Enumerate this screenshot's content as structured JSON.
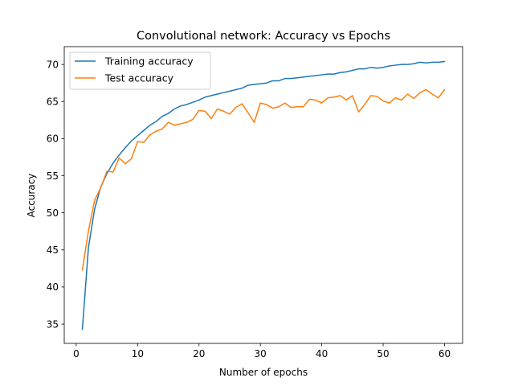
{
  "chart_data": {
    "type": "line",
    "title": "Convolutional network: Accuracy vs Epochs",
    "xlabel": "Number of epochs",
    "ylabel": "Accuracy",
    "xlim": [
      -1.95,
      62.95
    ],
    "ylim": [
      32.4,
      72.4
    ],
    "xticks": [
      0,
      10,
      20,
      30,
      40,
      50,
      60
    ],
    "yticks": [
      35,
      40,
      45,
      50,
      55,
      60,
      65,
      70
    ],
    "grid": false,
    "legend_position": "top-left",
    "x": [
      1,
      2,
      3,
      4,
      5,
      6,
      7,
      8,
      9,
      10,
      11,
      12,
      13,
      14,
      15,
      16,
      17,
      18,
      19,
      20,
      21,
      22,
      23,
      24,
      25,
      26,
      27,
      28,
      29,
      30,
      31,
      32,
      33,
      34,
      35,
      36,
      37,
      38,
      39,
      40,
      41,
      42,
      43,
      44,
      45,
      46,
      47,
      48,
      49,
      50,
      51,
      52,
      53,
      54,
      55,
      56,
      57,
      58,
      59,
      60
    ],
    "series": [
      {
        "name": "Training accuracy",
        "color": "#1f77b4",
        "values": [
          34.3,
          45.4,
          50.5,
          53.5,
          55.3,
          56.7,
          57.8,
          58.8,
          59.7,
          60.4,
          61.1,
          61.8,
          62.3,
          63.0,
          63.4,
          64.0,
          64.4,
          64.6,
          64.9,
          65.2,
          65.6,
          65.8,
          66.0,
          66.2,
          66.4,
          66.6,
          66.8,
          67.2,
          67.3,
          67.4,
          67.5,
          67.8,
          67.8,
          68.1,
          68.1,
          68.2,
          68.3,
          68.4,
          68.5,
          68.6,
          68.7,
          68.7,
          68.9,
          69.0,
          69.2,
          69.4,
          69.4,
          69.6,
          69.5,
          69.6,
          69.8,
          69.9,
          70.0,
          70.0,
          70.1,
          70.3,
          70.2,
          70.3,
          70.3,
          70.4
        ]
      },
      {
        "name": "Test accuracy",
        "color": "#ff7f0e",
        "values": [
          42.3,
          47.6,
          51.7,
          53.4,
          55.6,
          55.5,
          57.4,
          56.6,
          57.3,
          59.6,
          59.5,
          60.5,
          61.0,
          61.3,
          62.2,
          61.8,
          62.0,
          62.2,
          62.6,
          63.8,
          63.7,
          62.7,
          64.0,
          63.7,
          63.3,
          64.2,
          64.7,
          63.5,
          62.2,
          64.8,
          64.6,
          64.1,
          64.3,
          64.8,
          64.2,
          64.3,
          64.3,
          65.3,
          65.2,
          64.8,
          65.5,
          65.6,
          65.8,
          65.2,
          65.8,
          63.6,
          64.6,
          65.8,
          65.7,
          65.1,
          64.8,
          65.5,
          65.2,
          66.0,
          65.4,
          66.2,
          66.6,
          66.0,
          65.5,
          66.6
        ]
      }
    ]
  }
}
